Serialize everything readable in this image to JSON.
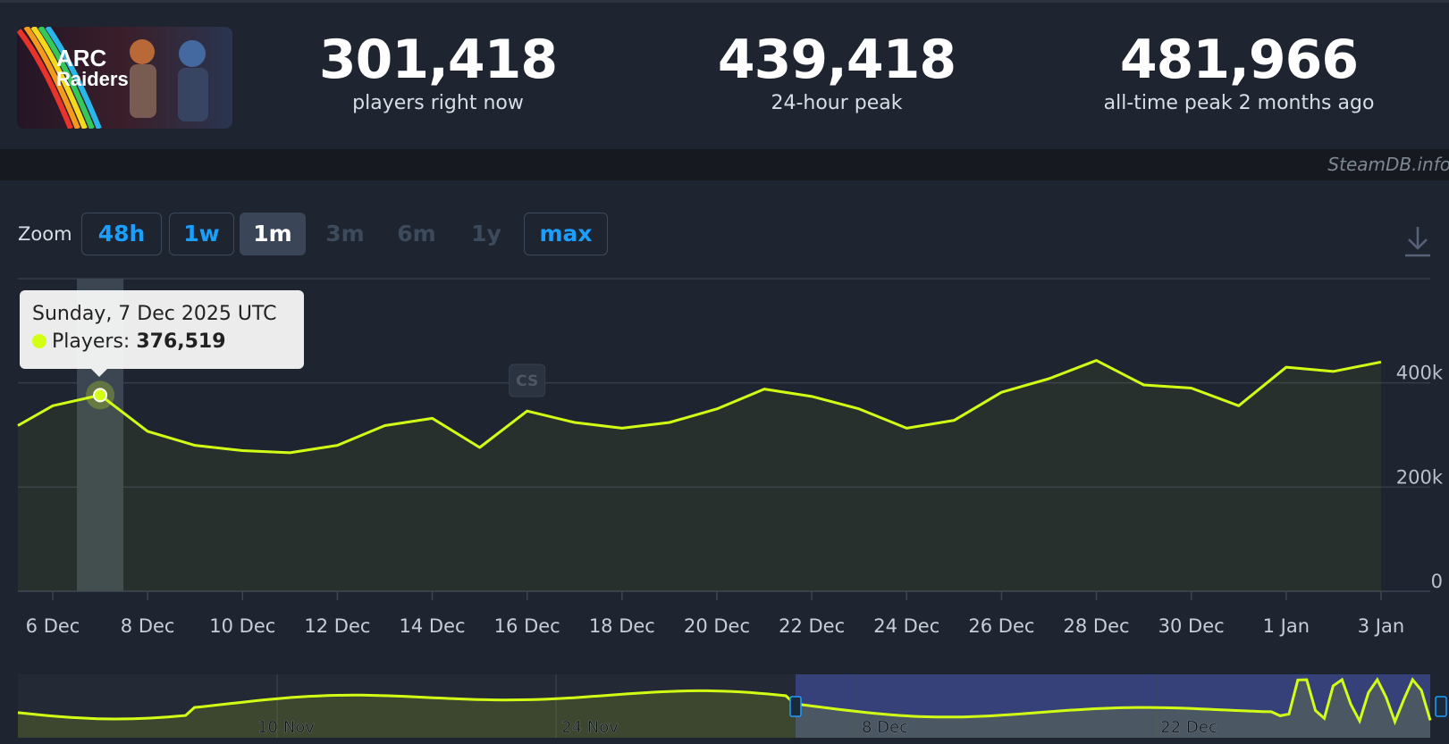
{
  "game": {
    "logo_text_line1": "ARC",
    "logo_text_line2": "Raiders"
  },
  "stats": [
    {
      "value": "301,418",
      "label": "players right now"
    },
    {
      "value": "439,418",
      "label": "24-hour peak"
    },
    {
      "value": "481,966",
      "label": "all-time peak 2 months ago"
    }
  ],
  "watermark": "SteamDB.info",
  "zoom": {
    "label": "Zoom",
    "buttons": [
      {
        "label": "48h",
        "state": "enabled"
      },
      {
        "label": "1w",
        "state": "enabled"
      },
      {
        "label": "1m",
        "state": "active"
      },
      {
        "label": "3m",
        "state": "disabled"
      },
      {
        "label": "6m",
        "state": "disabled"
      },
      {
        "label": "1y",
        "state": "disabled"
      },
      {
        "label": "max",
        "state": "enabled"
      }
    ]
  },
  "tooltip": {
    "date": "Sunday, 7 Dec 2025 UTC",
    "series_label": "Players:",
    "value": "376,519"
  },
  "flag": "CS",
  "colors": {
    "line": "#d3ff14",
    "accent": "#1a9fff",
    "navigator_sel": "#36417a"
  },
  "chart_data": {
    "type": "line",
    "series": [
      {
        "name": "Players",
        "x": [
          "2025-12-05",
          "2025-12-06",
          "2025-12-07",
          "2025-12-08",
          "2025-12-09",
          "2025-12-10",
          "2025-12-11",
          "2025-12-12",
          "2025-12-13",
          "2025-12-14",
          "2025-12-15",
          "2025-12-16",
          "2025-12-17",
          "2025-12-18",
          "2025-12-19",
          "2025-12-20",
          "2025-12-21",
          "2025-12-22",
          "2025-12-23",
          "2025-12-24",
          "2025-12-25",
          "2025-12-26",
          "2025-12-27",
          "2025-12-28",
          "2025-12-29",
          "2025-12-30",
          "2025-12-31",
          "2026-01-01",
          "2026-01-02",
          "2026-01-03"
        ],
        "values": [
          318000,
          356000,
          376519,
          307000,
          280000,
          270000,
          266000,
          280000,
          318000,
          332000,
          276000,
          346000,
          324000,
          313000,
          324000,
          350000,
          388000,
          374000,
          350000,
          313000,
          328000,
          382000,
          408000,
          443000,
          396000,
          390000,
          356000,
          430000,
          422000,
          440000
        ]
      }
    ],
    "xticks": [
      "6 Dec",
      "8 Dec",
      "10 Dec",
      "12 Dec",
      "14 Dec",
      "16 Dec",
      "18 Dec",
      "20 Dec",
      "22 Dec",
      "24 Dec",
      "26 Dec",
      "28 Dec",
      "30 Dec",
      "1 Jan",
      "3 Jan"
    ],
    "yticks": [
      "0",
      "200k",
      "400k"
    ],
    "ylim": [
      0,
      600000
    ],
    "grid": true,
    "navigator": {
      "labels": [
        "10 Nov",
        "24 Nov",
        "8 Dec",
        "22 Dec"
      ]
    }
  }
}
